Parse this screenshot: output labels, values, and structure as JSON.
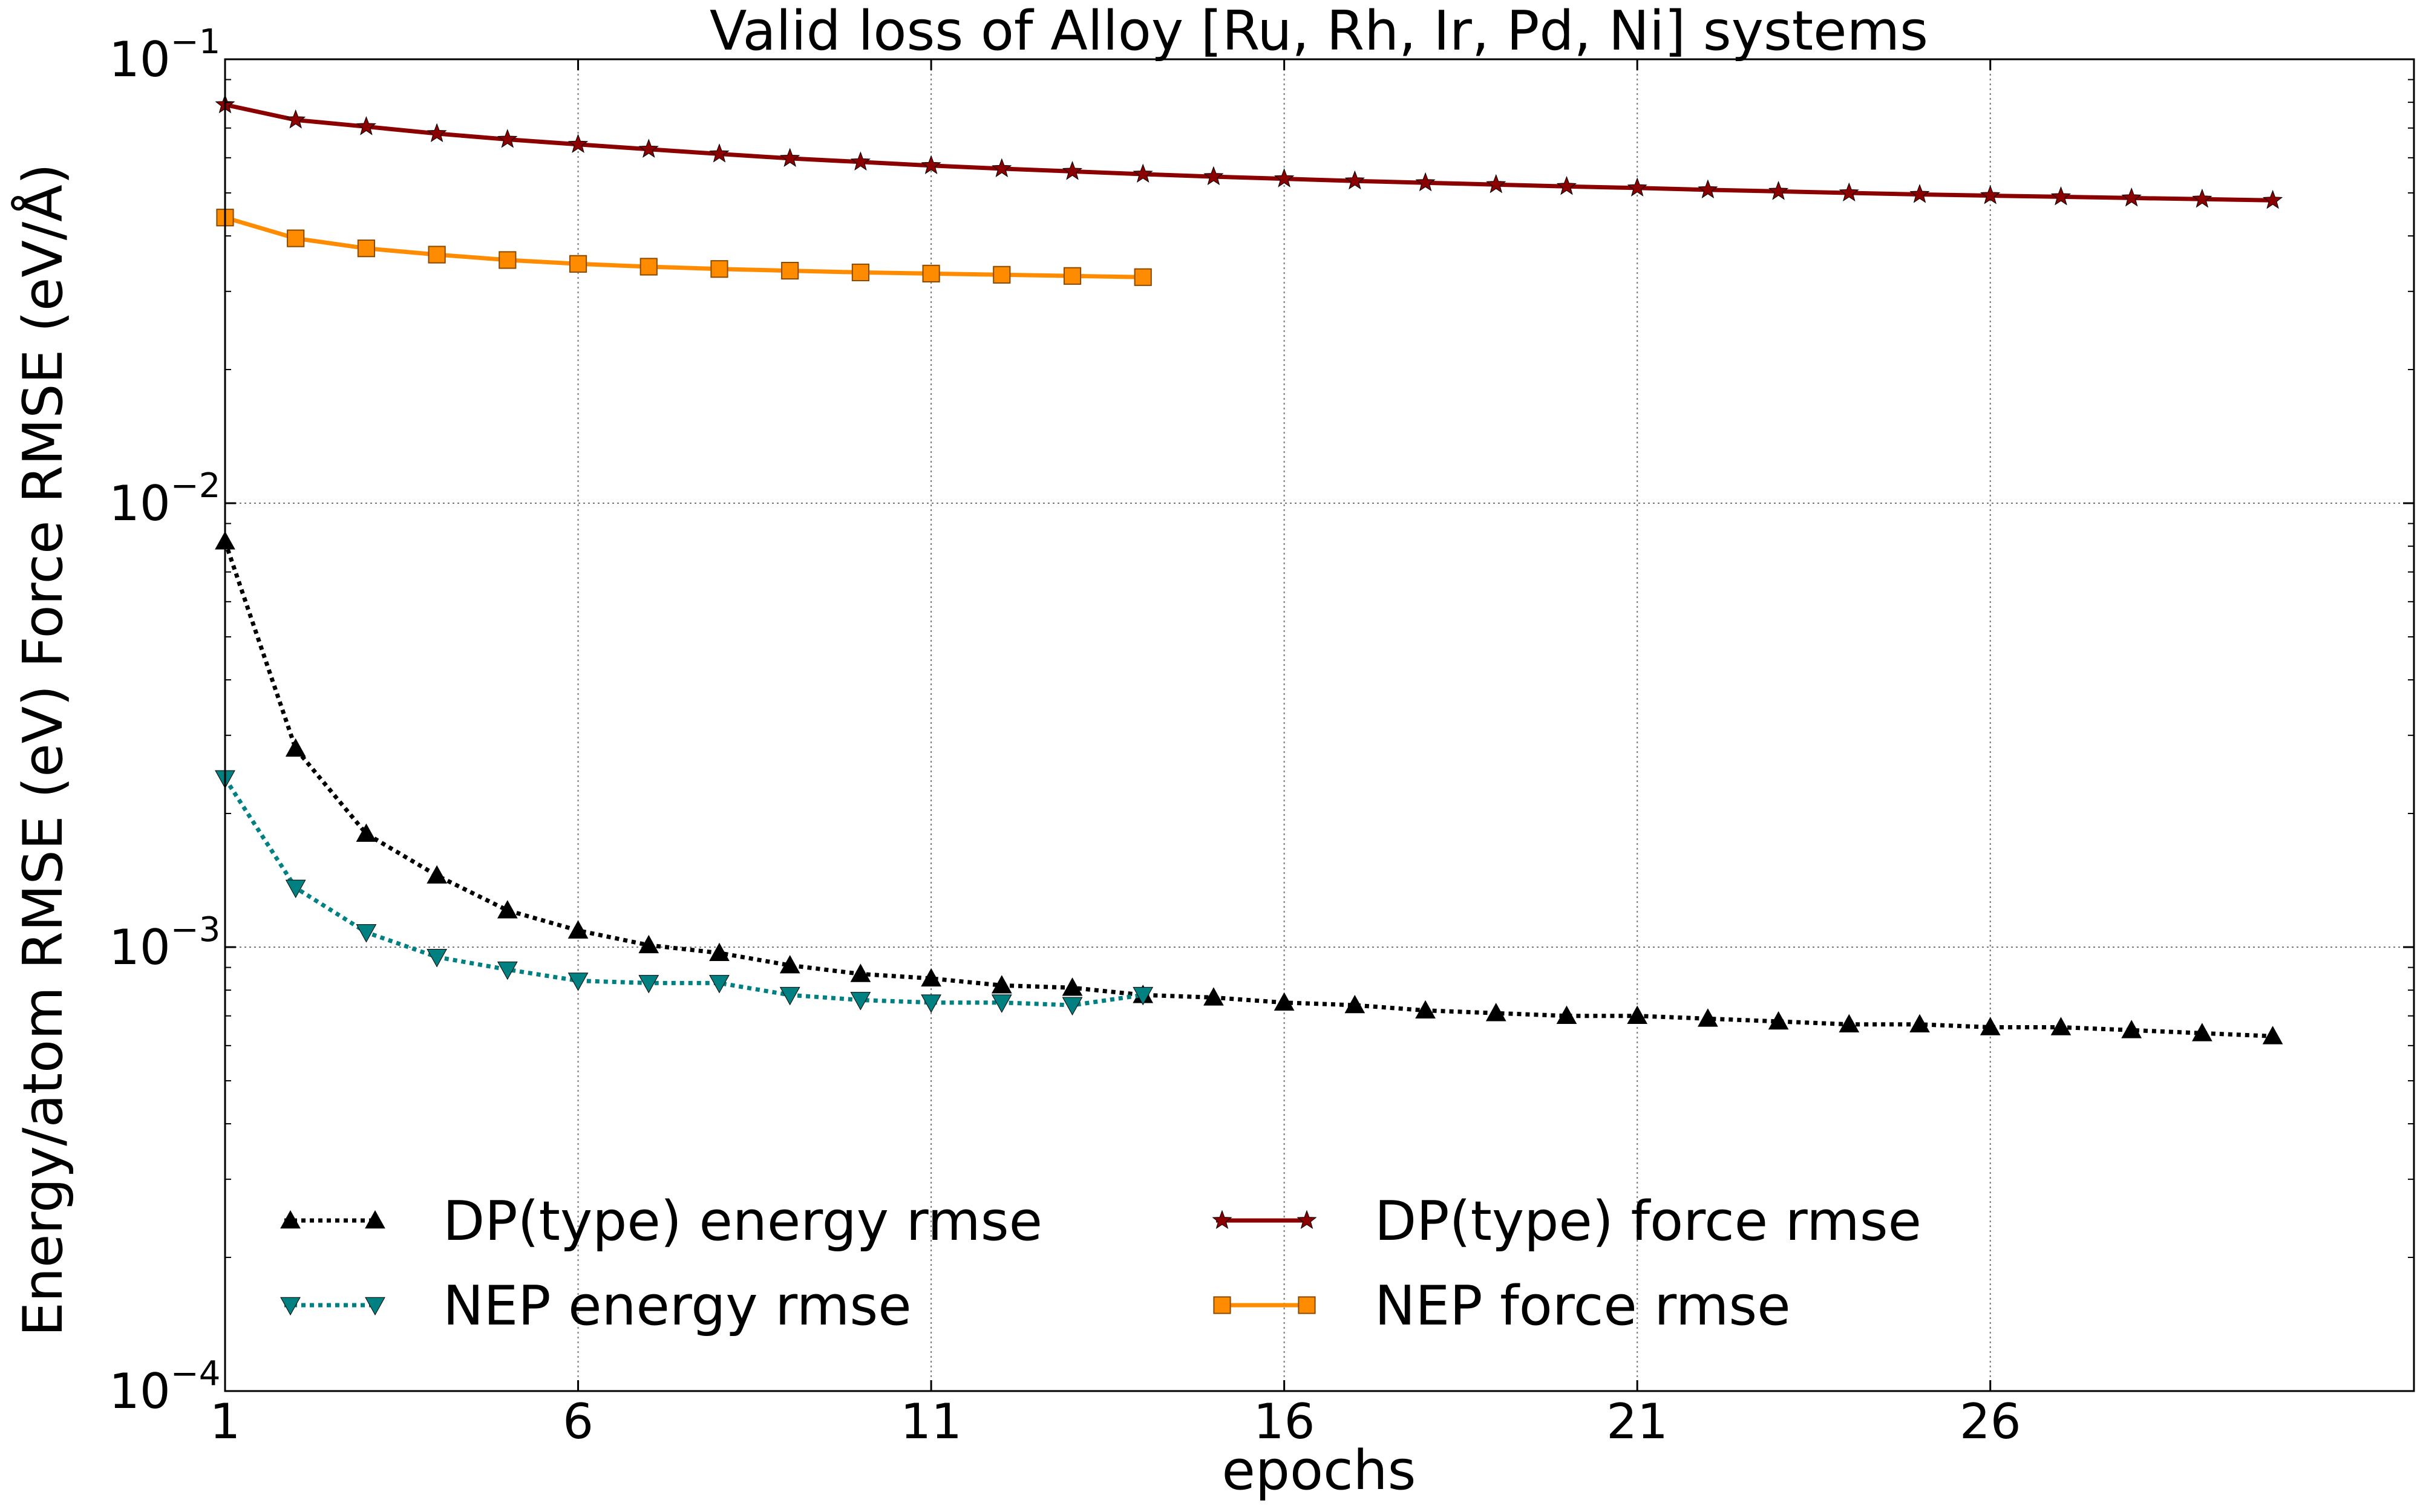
{
  "chart_data": {
    "type": "line",
    "title": "Valid loss of Alloy [Ru, Rh, Ir, Pd, Ni] systems",
    "xlabel": "epochs",
    "ylabel": "Energy/atom RMSE (eV)  Force RMSE (eV/Å)",
    "xlim": [
      1,
      32
    ],
    "ylim": [
      0.0001,
      0.1
    ],
    "yscale": "log",
    "grid": true,
    "legend_position": "lower-left",
    "xticks": [
      1,
      6,
      11,
      16,
      21,
      26
    ],
    "xtick_labels": [
      "1",
      "6",
      "11",
      "16",
      "21",
      "26"
    ],
    "yticks": [
      0.0001,
      0.001,
      0.01,
      0.1
    ],
    "ytick_labels": [
      {
        "base": "10",
        "exp": "−4"
      },
      {
        "base": "10",
        "exp": "−3"
      },
      {
        "base": "10",
        "exp": "−2"
      },
      {
        "base": "10",
        "exp": "−1"
      }
    ],
    "series": [
      {
        "name": "DP(type) energy rmse",
        "color": "#000000",
        "line": "dotted",
        "marker": "triangle-up",
        "x": [
          1,
          2,
          3,
          4,
          5,
          6,
          7,
          8,
          9,
          10,
          11,
          12,
          13,
          14,
          15,
          16,
          17,
          18,
          19,
          20,
          21,
          22,
          23,
          24,
          25,
          26,
          27,
          28,
          29,
          30
        ],
        "y": [
          0.0082,
          0.0028,
          0.0018,
          0.00145,
          0.00121,
          0.00109,
          0.00101,
          0.00097,
          0.00091,
          0.00087,
          0.00085,
          0.00082,
          0.00081,
          0.00078,
          0.00077,
          0.00075,
          0.00074,
          0.00072,
          0.00071,
          0.0007,
          0.0007,
          0.00069,
          0.00068,
          0.00067,
          0.00067,
          0.00066,
          0.00066,
          0.00065,
          0.00064,
          0.00063
        ]
      },
      {
        "name": "NEP energy rmse",
        "color": "#008080",
        "line": "dotted",
        "marker": "triangle-down",
        "x": [
          1,
          2,
          3,
          4,
          5,
          6,
          7,
          8,
          9,
          10,
          11,
          12,
          13,
          14
        ],
        "y": [
          0.0024,
          0.00136,
          0.00108,
          0.00095,
          0.00089,
          0.00084,
          0.00083,
          0.00083,
          0.00078,
          0.00076,
          0.00075,
          0.00075,
          0.00074,
          0.00078
        ]
      },
      {
        "name": "DP(type) force rmse",
        "color": "#8b0000",
        "line": "solid",
        "marker": "star",
        "x": [
          1,
          2,
          3,
          4,
          5,
          6,
          7,
          8,
          9,
          10,
          11,
          12,
          13,
          14,
          15,
          16,
          17,
          18,
          19,
          20,
          21,
          22,
          23,
          24,
          25,
          26,
          27,
          28,
          29,
          30
        ],
        "y": [
          0.079,
          0.073,
          0.0705,
          0.068,
          0.066,
          0.0643,
          0.0627,
          0.0612,
          0.0598,
          0.0587,
          0.0576,
          0.0567,
          0.0559,
          0.0551,
          0.0544,
          0.0538,
          0.0532,
          0.0527,
          0.0522,
          0.0517,
          0.0513,
          0.0508,
          0.0504,
          0.05,
          0.0496,
          0.0493,
          0.049,
          0.0487,
          0.0484,
          0.0481
        ]
      },
      {
        "name": "NEP force rmse",
        "color": "#ff8c00",
        "line": "solid",
        "marker": "square",
        "x": [
          1,
          2,
          3,
          4,
          5,
          6,
          7,
          8,
          9,
          10,
          11,
          12,
          13,
          14
        ],
        "y": [
          0.044,
          0.0395,
          0.0375,
          0.0363,
          0.0353,
          0.0346,
          0.0341,
          0.0337,
          0.0334,
          0.0331,
          0.0329,
          0.0327,
          0.0325,
          0.0323
        ]
      }
    ]
  }
}
